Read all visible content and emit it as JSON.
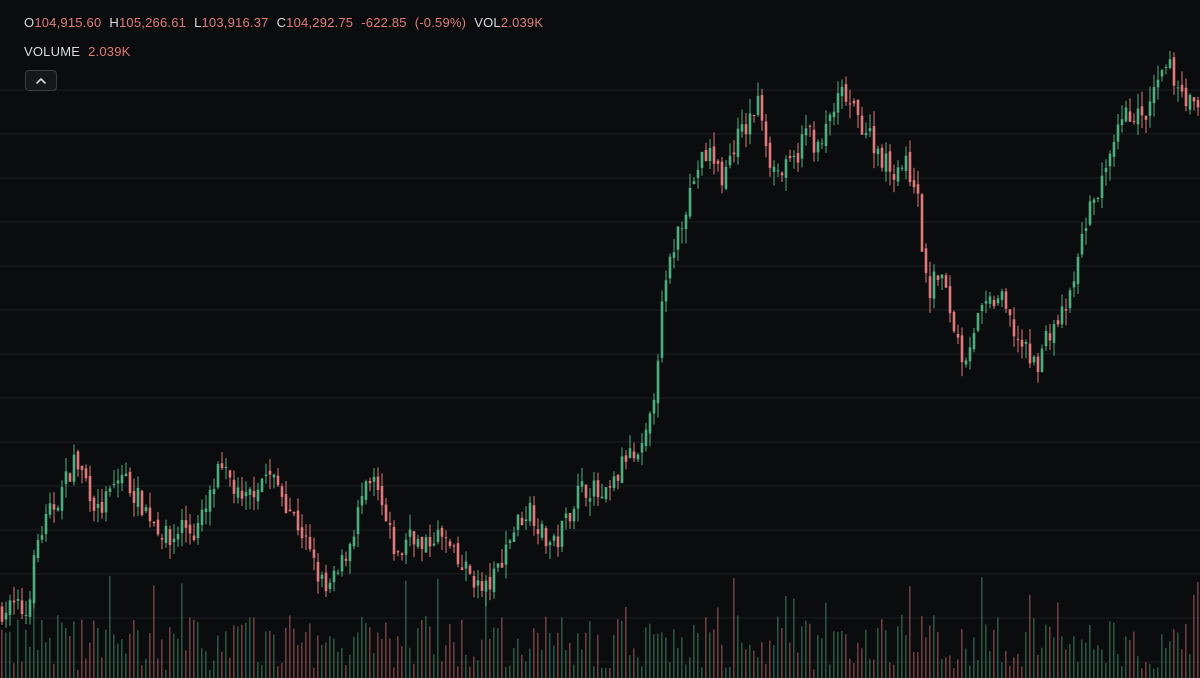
{
  "legend": {
    "open_label": "O",
    "open_value": "104,915.60",
    "high_label": "H",
    "high_value": "105,266.61",
    "low_label": "L",
    "low_value": "103,916.37",
    "close_label": "C",
    "close_value": "104,292.75",
    "change": "-622.85",
    "change_pct": "(-0.59%)",
    "vol_label": "VOL",
    "vol_value": "2.039K"
  },
  "volume_legend": {
    "label": "VOLUME",
    "value": "2.039K"
  },
  "collapse_icon": "chevron-up-icon",
  "colors": {
    "background": "#0b0c0e",
    "grid": "#1c1e22",
    "up": "#4fae7f",
    "down": "#e07a7a",
    "text": "#d9d9d9"
  },
  "chart_data": {
    "type": "candlestick",
    "grid": true,
    "keypoints": [
      [
        0,
        101900
      ],
      [
        2,
        102000
      ],
      [
        4,
        101800
      ],
      [
        6,
        104000
      ],
      [
        8,
        104800
      ],
      [
        10,
        105500
      ],
      [
        12,
        106400
      ],
      [
        14,
        105800
      ],
      [
        16,
        104800
      ],
      [
        18,
        105400
      ],
      [
        20,
        106000
      ],
      [
        22,
        105400
      ],
      [
        24,
        104900
      ],
      [
        26,
        104400
      ],
      [
        28,
        103900
      ],
      [
        30,
        104500
      ],
      [
        32,
        104200
      ],
      [
        34,
        104900
      ],
      [
        36,
        106000
      ],
      [
        38,
        105800
      ],
      [
        40,
        105000
      ],
      [
        42,
        105600
      ],
      [
        44,
        106000
      ],
      [
        46,
        105600
      ],
      [
        48,
        104900
      ],
      [
        50,
        104200
      ],
      [
        52,
        103200
      ],
      [
        54,
        102400
      ],
      [
        56,
        103000
      ],
      [
        58,
        104000
      ],
      [
        60,
        105300
      ],
      [
        62,
        105700
      ],
      [
        64,
        104400
      ],
      [
        66,
        103400
      ],
      [
        68,
        104400
      ],
      [
        70,
        103600
      ],
      [
        72,
        104200
      ],
      [
        74,
        103900
      ],
      [
        76,
        103200
      ],
      [
        78,
        103000
      ],
      [
        80,
        102400
      ],
      [
        82,
        102900
      ],
      [
        84,
        103900
      ],
      [
        86,
        104600
      ],
      [
        88,
        105000
      ],
      [
        90,
        104100
      ],
      [
        92,
        103800
      ],
      [
        94,
        104700
      ],
      [
        96,
        105500
      ],
      [
        98,
        105600
      ],
      [
        100,
        105100
      ],
      [
        102,
        105700
      ],
      [
        104,
        106600
      ],
      [
        106,
        106300
      ],
      [
        108,
        107600
      ],
      [
        110,
        111200
      ],
      [
        112,
        113000
      ],
      [
        114,
        114200
      ],
      [
        116,
        115300
      ],
      [
        118,
        115600
      ],
      [
        120,
        114800
      ],
      [
        122,
        116000
      ],
      [
        124,
        116400
      ],
      [
        126,
        117200
      ],
      [
        128,
        115200
      ],
      [
        130,
        115000
      ],
      [
        132,
        115400
      ],
      [
        134,
        116400
      ],
      [
        136,
        115600
      ],
      [
        138,
        116800
      ],
      [
        140,
        117400
      ],
      [
        142,
        116700
      ],
      [
        144,
        116300
      ],
      [
        146,
        115600
      ],
      [
        148,
        115100
      ],
      [
        150,
        115300
      ],
      [
        152,
        114800
      ],
      [
        154,
        111300
      ],
      [
        156,
        112100
      ],
      [
        158,
        110700
      ],
      [
        160,
        109400
      ],
      [
        162,
        110500
      ],
      [
        164,
        111000
      ],
      [
        166,
        111300
      ],
      [
        168,
        110400
      ],
      [
        170,
        109700
      ],
      [
        172,
        109200
      ],
      [
        174,
        110200
      ],
      [
        176,
        110600
      ],
      [
        178,
        111300
      ],
      [
        180,
        113400
      ],
      [
        182,
        114400
      ],
      [
        184,
        115000
      ],
      [
        186,
        116400
      ],
      [
        188,
        116900
      ],
      [
        190,
        116500
      ],
      [
        192,
        117500
      ],
      [
        194,
        118200
      ],
      [
        196,
        117600
      ],
      [
        198,
        117000
      ],
      [
        199,
        116800
      ]
    ],
    "y_range": [
      101000,
      119000
    ]
  }
}
